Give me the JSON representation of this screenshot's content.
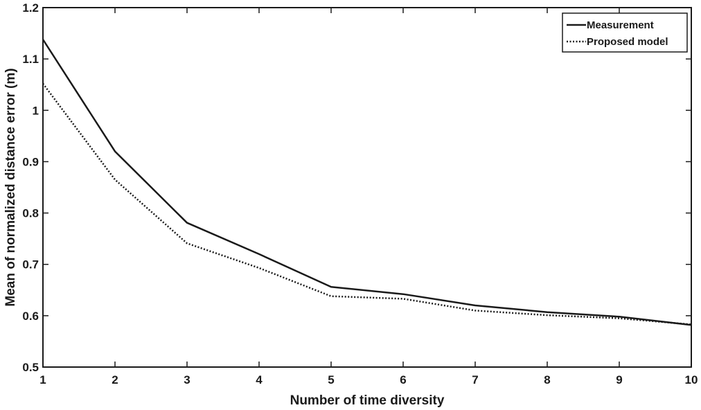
{
  "chart_data": {
    "type": "line",
    "title": "",
    "xlabel": "Number of time diversity",
    "ylabel": "Mean of normalized distance error (m)",
    "xlim": [
      1,
      10
    ],
    "ylim": [
      0.5,
      1.2
    ],
    "grid": false,
    "legend_position": "top-right",
    "x": [
      1,
      2,
      3,
      4,
      5,
      6,
      7,
      8,
      9,
      10
    ],
    "xticks": [
      1,
      2,
      3,
      4,
      5,
      6,
      7,
      8,
      9,
      10
    ],
    "yticks": [
      0.5,
      0.6,
      0.7,
      0.8,
      0.9,
      1,
      1.1,
      1.2
    ],
    "ytick_labels": [
      "0.5",
      "0.6",
      "0.7",
      "0.8",
      "0.9",
      "1",
      "1.1",
      "1.2"
    ],
    "series": [
      {
        "name": "Measurement",
        "style": "solid",
        "color": "#1a1a1a",
        "values": [
          1.138,
          0.92,
          0.781,
          0.72,
          0.656,
          0.642,
          0.62,
          0.607,
          0.598,
          0.582
        ]
      },
      {
        "name": "Proposed model",
        "style": "dotted",
        "color": "#1a1a1a",
        "values": [
          1.052,
          0.865,
          0.741,
          0.693,
          0.638,
          0.633,
          0.61,
          0.601,
          0.595,
          0.583
        ]
      }
    ]
  }
}
